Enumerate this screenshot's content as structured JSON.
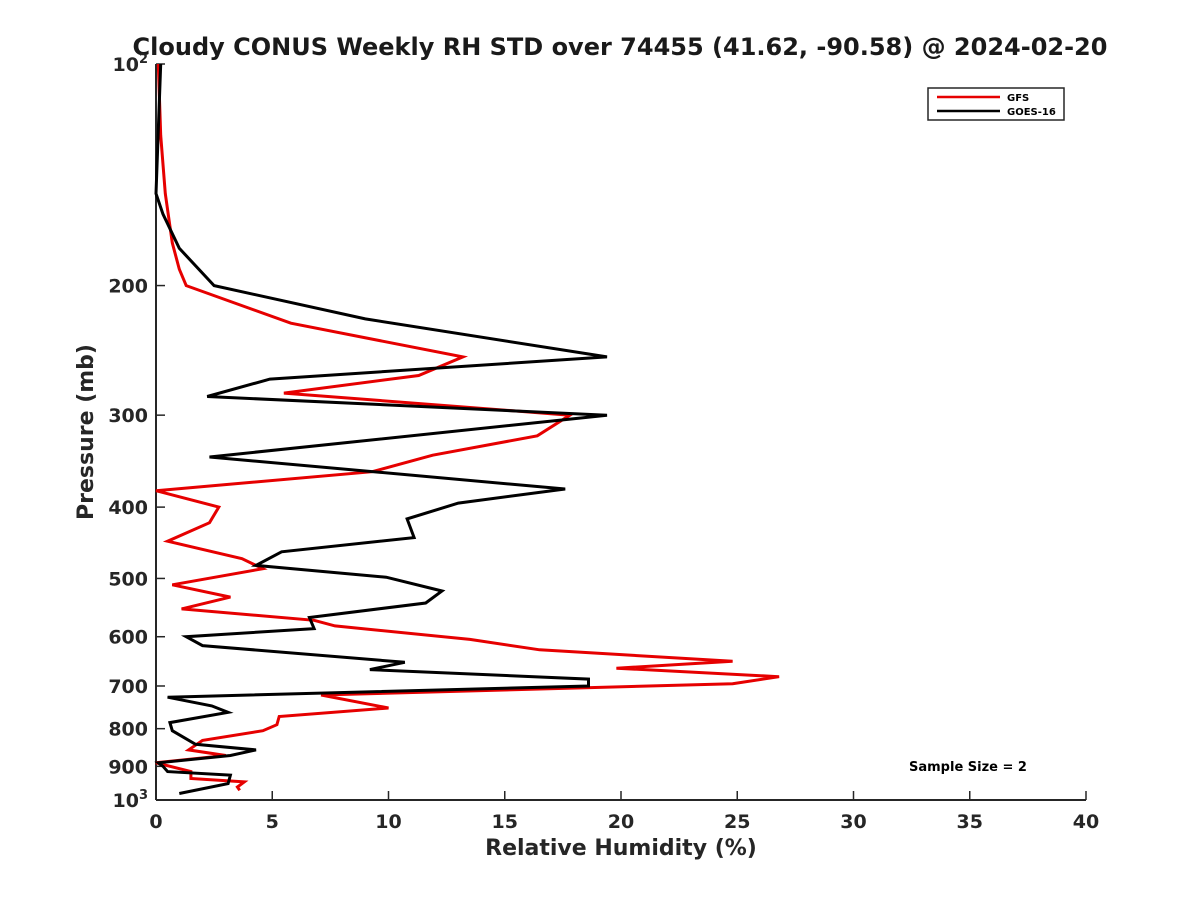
{
  "chart_data": {
    "type": "line",
    "title": "Cloudy CONUS Weekly RH STD over 74455 (41.62, -90.58) @ 2024-02-20",
    "xlabel": "Relative Humidity (%)",
    "ylabel": "Pressure (mb)",
    "xlim": [
      0,
      40
    ],
    "ylim": [
      100,
      1000
    ],
    "y_scale": "log",
    "y_reversed": true,
    "grid": false,
    "legend_position": "top-right",
    "x_ticks": [
      "0",
      "5",
      "10",
      "15",
      "20",
      "25",
      "30",
      "35",
      "40"
    ],
    "y_ticks": [
      {
        "value": 100,
        "label": "10",
        "sup": "2"
      },
      {
        "value": 200,
        "label": "200",
        "sup": ""
      },
      {
        "value": 300,
        "label": "300",
        "sup": ""
      },
      {
        "value": 400,
        "label": "400",
        "sup": ""
      },
      {
        "value": 500,
        "label": "500",
        "sup": ""
      },
      {
        "value": 600,
        "label": "600",
        "sup": ""
      },
      {
        "value": 700,
        "label": "700",
        "sup": ""
      },
      {
        "value": 800,
        "label": "800",
        "sup": ""
      },
      {
        "value": 900,
        "label": "900",
        "sup": ""
      },
      {
        "value": 1000,
        "label": "10",
        "sup": "3"
      }
    ],
    "annotation": "Sample Size = 2",
    "series": [
      {
        "name": "GFS",
        "color": "#e60000",
        "points": [
          [
            0.1,
            100
          ],
          [
            0.2,
            125
          ],
          [
            0.4,
            150
          ],
          [
            0.7,
            175
          ],
          [
            1.0,
            190
          ],
          [
            1.3,
            200
          ],
          [
            5.8,
            225
          ],
          [
            13.2,
            250
          ],
          [
            11.3,
            265
          ],
          [
            5.5,
            280
          ],
          [
            17.8,
            300
          ],
          [
            16.4,
            320
          ],
          [
            11.9,
            340
          ],
          [
            9.3,
            358
          ],
          [
            0.0,
            380
          ],
          [
            2.7,
            400
          ],
          [
            2.3,
            420
          ],
          [
            0.5,
            445
          ],
          [
            3.7,
            470
          ],
          [
            4.6,
            485
          ],
          [
            0.7,
            510
          ],
          [
            3.2,
            530
          ],
          [
            1.1,
            550
          ],
          [
            6.8,
            570
          ],
          [
            7.7,
            580
          ],
          [
            13.5,
            605
          ],
          [
            16.5,
            625
          ],
          [
            24.8,
            648
          ],
          [
            19.8,
            662
          ],
          [
            26.8,
            680
          ],
          [
            24.8,
            695
          ],
          [
            7.1,
            720
          ],
          [
            10.0,
            750
          ],
          [
            5.3,
            770
          ],
          [
            5.2,
            790
          ],
          [
            4.6,
            805
          ],
          [
            2.0,
            830
          ],
          [
            1.4,
            855
          ],
          [
            3.0,
            870
          ],
          [
            0.0,
            890
          ],
          [
            1.5,
            915
          ],
          [
            1.5,
            935
          ],
          [
            3.8,
            945
          ],
          [
            3.5,
            960
          ],
          [
            3.6,
            970
          ]
        ]
      },
      {
        "name": "GOES-16",
        "color": "#000000",
        "points": [
          [
            0.2,
            100
          ],
          [
            0.0,
            150
          ],
          [
            0.3,
            160
          ],
          [
            1.0,
            178
          ],
          [
            2.5,
            200
          ],
          [
            9.0,
            222
          ],
          [
            19.4,
            250
          ],
          [
            4.9,
            268
          ],
          [
            2.2,
            283
          ],
          [
            19.4,
            300
          ],
          [
            2.3,
            342
          ],
          [
            17.6,
            378
          ],
          [
            13.0,
            395
          ],
          [
            10.8,
            415
          ],
          [
            11.1,
            440
          ],
          [
            5.4,
            460
          ],
          [
            4.3,
            480
          ],
          [
            9.9,
            498
          ],
          [
            12.3,
            520
          ],
          [
            11.6,
            540
          ],
          [
            6.6,
            565
          ],
          [
            6.8,
            585
          ],
          [
            1.3,
            600
          ],
          [
            2.0,
            617
          ],
          [
            10.7,
            650
          ],
          [
            9.2,
            665
          ],
          [
            18.6,
            685
          ],
          [
            18.6,
            700
          ],
          [
            0.5,
            725
          ],
          [
            2.4,
            745
          ],
          [
            3.1,
            760
          ],
          [
            0.6,
            785
          ],
          [
            0.7,
            805
          ],
          [
            1.7,
            840
          ],
          [
            4.3,
            855
          ],
          [
            3.2,
            870
          ],
          [
            0.1,
            890
          ],
          [
            0.3,
            900
          ],
          [
            0.5,
            915
          ],
          [
            3.2,
            925
          ],
          [
            3.1,
            950
          ],
          [
            1.0,
            980
          ]
        ]
      }
    ]
  }
}
